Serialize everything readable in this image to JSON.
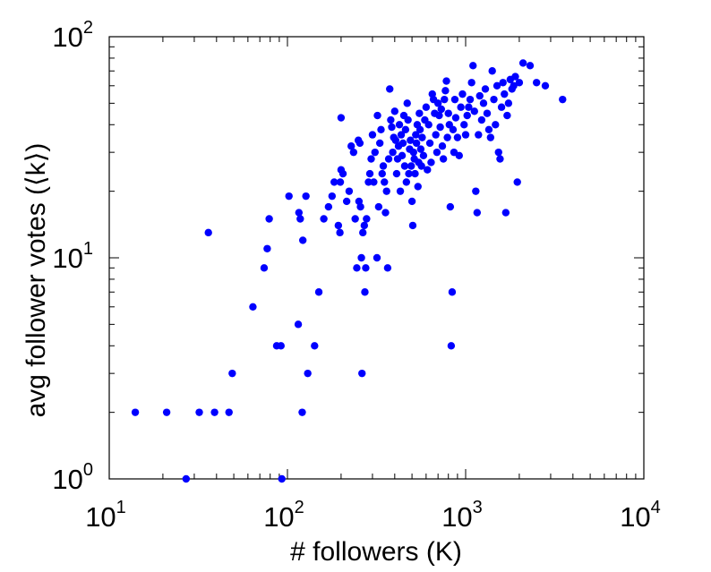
{
  "chart_data": {
    "type": "scatter",
    "title": "",
    "xlabel": "# followers (K)",
    "ylabel": "avg follower votes (⟨k⟩)",
    "xscale": "log",
    "yscale": "log",
    "xlim": [
      10,
      10000
    ],
    "ylim": [
      1,
      100
    ],
    "grid": false,
    "legend": "none",
    "x_ticks": [
      {
        "base": "10",
        "exp": "1",
        "value": 10
      },
      {
        "base": "10",
        "exp": "2",
        "value": 100
      },
      {
        "base": "10",
        "exp": "3",
        "value": 1000
      },
      {
        "base": "10",
        "exp": "4",
        "value": 10000
      }
    ],
    "y_ticks": [
      {
        "base": "10",
        "exp": "0",
        "value": 1
      },
      {
        "base": "10",
        "exp": "1",
        "value": 10
      },
      {
        "base": "10",
        "exp": "2",
        "value": 100
      }
    ],
    "marker_color": "#0000ff",
    "series": [
      {
        "points": [
          [
            14,
            2
          ],
          [
            21,
            2
          ],
          [
            32,
            2
          ],
          [
            39,
            2
          ],
          [
            47,
            2
          ],
          [
            27,
            1
          ],
          [
            93,
            1
          ],
          [
            49,
            3
          ],
          [
            36,
            13
          ],
          [
            64,
            6
          ],
          [
            74,
            9
          ],
          [
            77,
            11
          ],
          [
            79,
            15
          ],
          [
            87,
            4
          ],
          [
            92,
            4
          ],
          [
            102,
            19
          ],
          [
            116,
            16
          ],
          [
            118,
            15
          ],
          [
            122,
            12
          ],
          [
            127,
            19
          ],
          [
            115,
            5
          ],
          [
            121,
            2
          ],
          [
            130,
            3
          ],
          [
            142,
            4
          ],
          [
            150,
            7
          ],
          [
            160,
            15
          ],
          [
            170,
            17
          ],
          [
            178,
            19
          ],
          [
            183,
            22
          ],
          [
            193,
            14
          ],
          [
            197,
            13
          ],
          [
            198,
            22
          ],
          [
            200,
            25
          ],
          [
            200,
            43
          ],
          [
            205,
            24
          ],
          [
            215,
            18
          ],
          [
            222,
            20
          ],
          [
            228,
            32
          ],
          [
            235,
            30
          ],
          [
            240,
            15
          ],
          [
            245,
            9
          ],
          [
            250,
            34
          ],
          [
            252,
            18
          ],
          [
            255,
            33
          ],
          [
            257,
            17
          ],
          [
            260,
            10
          ],
          [
            262,
            3
          ],
          [
            265,
            13
          ],
          [
            270,
            14
          ],
          [
            272,
            7
          ],
          [
            275,
            9
          ],
          [
            278,
            15
          ],
          [
            285,
            22
          ],
          [
            290,
            24
          ],
          [
            295,
            28
          ],
          [
            300,
            36
          ],
          [
            305,
            22
          ],
          [
            310,
            30
          ],
          [
            318,
            10
          ],
          [
            320,
            44
          ],
          [
            325,
            17
          ],
          [
            330,
            33
          ],
          [
            335,
            38
          ],
          [
            340,
            24
          ],
          [
            345,
            26
          ],
          [
            350,
            22
          ],
          [
            355,
            16
          ],
          [
            360,
            20
          ],
          [
            365,
            9
          ],
          [
            370,
            28
          ],
          [
            375,
            58
          ],
          [
            380,
            42
          ],
          [
            385,
            39
          ],
          [
            390,
            30
          ],
          [
            395,
            35
          ],
          [
            400,
            46
          ],
          [
            405,
            34
          ],
          [
            410,
            24
          ],
          [
            415,
            28
          ],
          [
            420,
            32
          ],
          [
            425,
            40
          ],
          [
            430,
            20
          ],
          [
            435,
            36
          ],
          [
            440,
            29
          ],
          [
            445,
            33
          ],
          [
            450,
            44
          ],
          [
            455,
            26
          ],
          [
            460,
            38
          ],
          [
            465,
            22
          ],
          [
            470,
            50
          ],
          [
            475,
            42
          ],
          [
            480,
            24
          ],
          [
            485,
            31
          ],
          [
            490,
            34
          ],
          [
            495,
            26
          ],
          [
            500,
            18
          ],
          [
            505,
            14
          ],
          [
            510,
            30
          ],
          [
            515,
            28
          ],
          [
            520,
            24
          ],
          [
            525,
            36
          ],
          [
            530,
            33
          ],
          [
            535,
            40
          ],
          [
            540,
            21
          ],
          [
            545,
            27
          ],
          [
            550,
            45
          ],
          [
            555,
            38
          ],
          [
            560,
            31
          ],
          [
            565,
            26
          ],
          [
            570,
            35
          ],
          [
            580,
            29
          ],
          [
            590,
            42
          ],
          [
            600,
            48
          ],
          [
            610,
            25
          ],
          [
            620,
            40
          ],
          [
            630,
            33
          ],
          [
            640,
            27
          ],
          [
            650,
            55
          ],
          [
            660,
            52
          ],
          [
            670,
            45
          ],
          [
            680,
            36
          ],
          [
            690,
            30
          ],
          [
            700,
            50
          ],
          [
            710,
            44
          ],
          [
            720,
            39
          ],
          [
            730,
            47
          ],
          [
            740,
            32
          ],
          [
            750,
            28
          ],
          [
            760,
            52
          ],
          [
            770,
            57
          ],
          [
            780,
            63
          ],
          [
            790,
            35
          ],
          [
            800,
            45
          ],
          [
            810,
            40
          ],
          [
            820,
            17
          ],
          [
            830,
            4
          ],
          [
            840,
            7
          ],
          [
            850,
            38
          ],
          [
            860,
            30
          ],
          [
            870,
            52
          ],
          [
            880,
            43
          ],
          [
            900,
            35
          ],
          [
            920,
            29
          ],
          [
            940,
            48
          ],
          [
            960,
            55
          ],
          [
            980,
            40
          ],
          [
            1000,
            36
          ],
          [
            1020,
            44
          ],
          [
            1040,
            48
          ],
          [
            1060,
            52
          ],
          [
            1080,
            62
          ],
          [
            1100,
            74
          ],
          [
            1120,
            46
          ],
          [
            1140,
            20
          ],
          [
            1160,
            16
          ],
          [
            1180,
            36
          ],
          [
            1200,
            54
          ],
          [
            1230,
            42
          ],
          [
            1260,
            50
          ],
          [
            1290,
            58
          ],
          [
            1320,
            45
          ],
          [
            1350,
            38
          ],
          [
            1380,
            35
          ],
          [
            1410,
            70
          ],
          [
            1440,
            52
          ],
          [
            1470,
            40
          ],
          [
            1500,
            60
          ],
          [
            1530,
            30
          ],
          [
            1560,
            28
          ],
          [
            1590,
            48
          ],
          [
            1620,
            62
          ],
          [
            1650,
            55
          ],
          [
            1680,
            16
          ],
          [
            1710,
            44
          ],
          [
            1740,
            50
          ],
          [
            1780,
            64
          ],
          [
            1820,
            58
          ],
          [
            1860,
            60
          ],
          [
            1900,
            66
          ],
          [
            1950,
            22
          ],
          [
            2000,
            62
          ],
          [
            2100,
            76
          ],
          [
            2300,
            74
          ],
          [
            2500,
            62
          ],
          [
            2800,
            60
          ],
          [
            3500,
            52
          ]
        ]
      }
    ]
  }
}
